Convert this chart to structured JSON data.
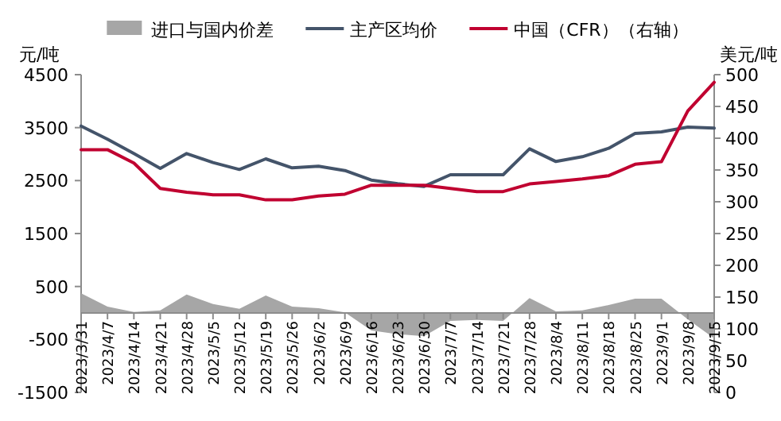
{
  "chart_data": {
    "type": "line",
    "ylabel": "元/吨",
    "y2label": "美元/吨",
    "legend": "top",
    "categories": [
      "2023/3/31",
      "2023/4/7",
      "2023/4/14",
      "2023/4/21",
      "2023/4/28",
      "2023/5/5",
      "2023/5/12",
      "2023/5/19",
      "2023/5/26",
      "2023/6/2",
      "2023/6/9",
      "2023/6/16",
      "2023/6/23",
      "2023/6/30",
      "2023/7/7",
      "2023/7/14",
      "2023/7/21",
      "2023/7/28",
      "2023/8/4",
      "2023/8/11",
      "2023/8/18",
      "2023/8/25",
      "2023/9/1",
      "2023/9/8",
      "2023/9/15"
    ],
    "series": [
      {
        "name": "进口与国内价差",
        "type": "area",
        "color": "#a6a6a6",
        "values": [
          370,
          120,
          20,
          50,
          350,
          170,
          80,
          330,
          120,
          90,
          10,
          -330,
          -400,
          -440,
          -150,
          -130,
          -150,
          280,
          30,
          50,
          150,
          270,
          270,
          -120,
          -480
        ]
      },
      {
        "name": "主产区均价",
        "color": "#44546a",
        "values": [
          3530,
          3280,
          3010,
          2730,
          3010,
          2840,
          2710,
          2910,
          2740,
          2770,
          2690,
          2510,
          2440,
          2390,
          2610,
          2610,
          2610,
          3100,
          2860,
          2950,
          3110,
          3390,
          3420,
          3510,
          3490
        ]
      },
      {
        "name": "中国（CFR）（右轴）",
        "color": "#c00030",
        "axis": "y2",
        "values": [
          382,
          382,
          361,
          321,
          315,
          311,
          311,
          303,
          303,
          309,
          312,
          326,
          326,
          326,
          321,
          316,
          316,
          328,
          332,
          336,
          341,
          359,
          363,
          443,
          488
        ]
      }
    ],
    "ylim": [
      -1500,
      4500
    ],
    "yticks": [
      -1500,
      -500,
      500,
      1500,
      2500,
      3500,
      4500
    ],
    "y2lim": [
      0,
      500
    ],
    "y2ticks": [
      0,
      50,
      100,
      150,
      200,
      250,
      300,
      350,
      400,
      450,
      500
    ]
  }
}
